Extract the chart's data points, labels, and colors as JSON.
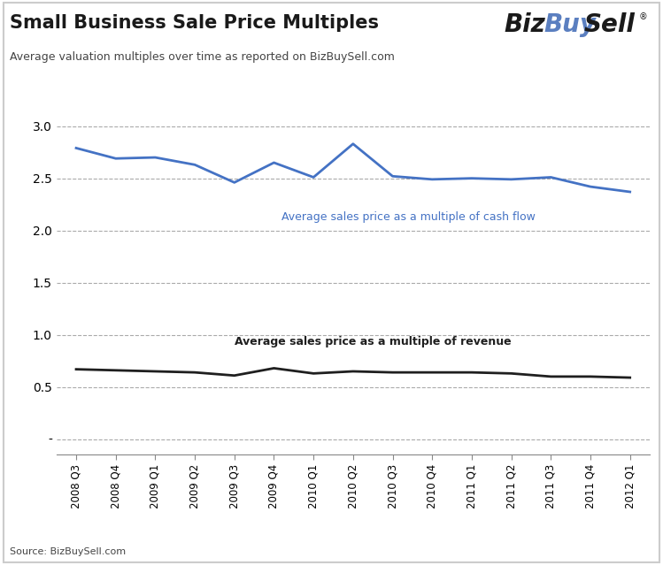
{
  "title": "Small Business Sale Price Multiples",
  "subtitle": "Average valuation multiples over time as reported on BizBuySell.com",
  "source": "Source: BizBuySell.com",
  "x_labels": [
    "2008 Q3",
    "2008 Q4",
    "2009 Q1",
    "2009 Q2",
    "2009 Q3",
    "2009 Q4",
    "2010 Q1",
    "2010 Q2",
    "2010 Q3",
    "2010 Q4",
    "2011 Q1",
    "2011 Q2",
    "2011 Q3",
    "2011 Q4",
    "2012 Q1"
  ],
  "cash_flow": [
    2.79,
    2.69,
    2.7,
    2.63,
    2.46,
    2.65,
    2.51,
    2.83,
    2.52,
    2.49,
    2.5,
    2.49,
    2.51,
    2.42,
    2.37
  ],
  "revenue": [
    0.67,
    0.66,
    0.65,
    0.64,
    0.61,
    0.68,
    0.63,
    0.65,
    0.64,
    0.64,
    0.64,
    0.63,
    0.6,
    0.6,
    0.59
  ],
  "cash_flow_color": "#4472C4",
  "revenue_color": "#1F1F1F",
  "cash_flow_label": "Average sales price as a multiple of cash flow",
  "revenue_label": "Average sales price as a multiple of revenue",
  "ylim_min": -0.15,
  "ylim_max": 3.18,
  "yticks": [
    0.0,
    0.5,
    1.0,
    1.5,
    2.0,
    2.5,
    3.0
  ],
  "ytick_labels": [
    "-",
    "0.5",
    "1.0",
    "1.5",
    "2.0",
    "2.5",
    "3.0"
  ],
  "background_color": "#FFFFFF",
  "grid_color": "#AAAAAA",
  "border_color": "#CCCCCC"
}
